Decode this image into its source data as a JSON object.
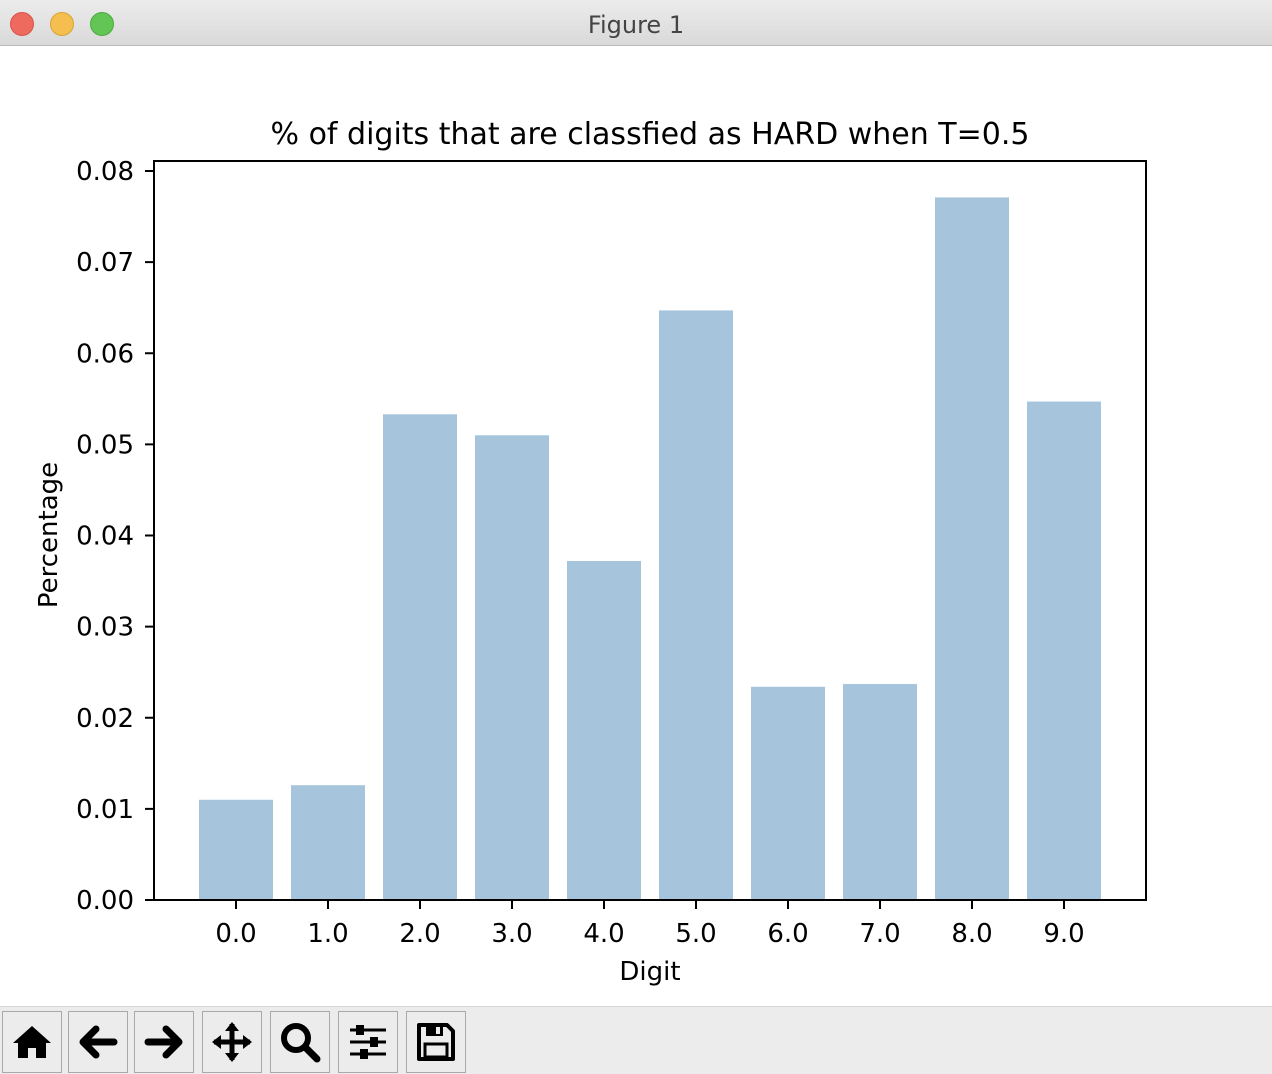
{
  "window": {
    "title": "Figure 1"
  },
  "toolbar": {
    "buttons": [
      {
        "icon": "home-icon"
      },
      {
        "icon": "arrow-left-icon"
      },
      {
        "icon": "arrow-right-icon"
      },
      {
        "icon": "move-icon"
      },
      {
        "icon": "zoom-icon"
      },
      {
        "icon": "sliders-icon"
      },
      {
        "icon": "save-icon"
      }
    ]
  },
  "chart_data": {
    "type": "bar",
    "title": "% of digits that are classfied as HARD when T=0.5",
    "xlabel": "Digit",
    "ylabel": "Percentage",
    "categories": [
      "0.0",
      "1.0",
      "2.0",
      "3.0",
      "4.0",
      "5.0",
      "6.0",
      "7.0",
      "8.0",
      "9.0"
    ],
    "values": [
      0.011,
      0.0126,
      0.0533,
      0.051,
      0.0372,
      0.0647,
      0.0234,
      0.0237,
      0.0771,
      0.0547
    ],
    "ylim": [
      0,
      0.08
    ],
    "yticks": [
      "0.00",
      "0.01",
      "0.02",
      "0.03",
      "0.04",
      "0.05",
      "0.06",
      "0.07",
      "0.08"
    ],
    "bar_color": "#a6c5dc",
    "grid": false,
    "legend": "none"
  }
}
